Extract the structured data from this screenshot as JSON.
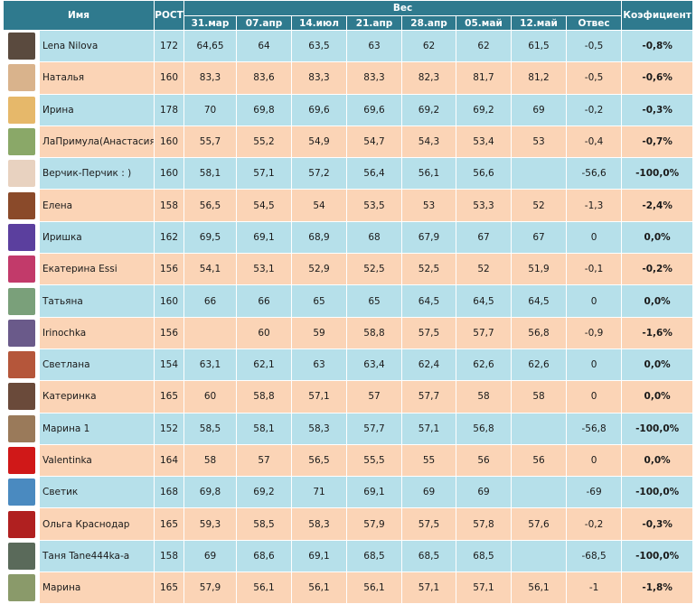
{
  "header": {
    "name": "Имя",
    "height": "РОСТ",
    "weight": "Вес",
    "dates": [
      "31.мар",
      "07.апр",
      "14.июл",
      "21.апр",
      "28.апр",
      "05.май",
      "12.май"
    ],
    "diff": "Отвес",
    "coef": "Коэфициент"
  },
  "rows": [
    {
      "name": "Lena Nilova",
      "height": "172",
      "w": [
        "64,65",
        "64",
        "63,5",
        "63",
        "62",
        "62",
        "61,5"
      ],
      "diff": "-0,5",
      "coef": "-0,8%",
      "avatar": "#5a4a3e"
    },
    {
      "name": "Наталья",
      "height": "160",
      "w": [
        "83,3",
        "83,6",
        "83,3",
        "83,3",
        "82,3",
        "81,7",
        "81,2"
      ],
      "diff": "-0,5",
      "coef": "-0,6%",
      "avatar": "#d9b38c"
    },
    {
      "name": "Ирина",
      "height": "178",
      "w": [
        "70",
        "69,8",
        "69,6",
        "69,6",
        "69,2",
        "69,2",
        "69"
      ],
      "diff": "-0,2",
      "coef": "-0,3%",
      "avatar": "#e6b86a"
    },
    {
      "name": "ЛаПримула(Анастасия)",
      "height": "160",
      "w": [
        "55,7",
        "55,2",
        "54,9",
        "54,7",
        "54,3",
        "53,4",
        "53"
      ],
      "diff": "-0,4",
      "coef": "-0,7%",
      "avatar": "#8aa868"
    },
    {
      "name": "Верчик-Перчик : )",
      "height": "160",
      "w": [
        "58,1",
        "57,1",
        "57,2",
        "56,4",
        "56,1",
        "56,6",
        ""
      ],
      "diff": "-56,6",
      "coef": "-100,0%",
      "avatar": "#e8d2c0"
    },
    {
      "name": "Елена",
      "height": "158",
      "w": [
        "56,5",
        "54,5",
        "54",
        "53,5",
        "53",
        "53,3",
        "52"
      ],
      "diff": "-1,3",
      "coef": "-2,4%",
      "avatar": "#8a4a2a"
    },
    {
      "name": "Иришка",
      "height": "162",
      "w": [
        "69,5",
        "69,1",
        "68,9",
        "68",
        "67,9",
        "67",
        "67"
      ],
      "diff": "0",
      "coef": "0,0%",
      "avatar": "#5b3f9e"
    },
    {
      "name": "Екатерина Essi",
      "height": "156",
      "w": [
        "54,1",
        "53,1",
        "52,9",
        "52,5",
        "52,5",
        "52",
        "51,9"
      ],
      "diff": "-0,1",
      "coef": "-0,2%",
      "avatar": "#c23a6a"
    },
    {
      "name": "Татьяна",
      "height": "160",
      "w": [
        "66",
        "66",
        "65",
        "65",
        "64,5",
        "64,5",
        "64,5"
      ],
      "diff": "0",
      "coef": "0,0%",
      "avatar": "#7aa07a"
    },
    {
      "name": "Irinochka",
      "height": "156",
      "w": [
        "",
        "60",
        "59",
        "58,8",
        "57,5",
        "57,7",
        "56,8"
      ],
      "diff": "-0,9",
      "coef": "-1,6%",
      "avatar": "#6a5a8a"
    },
    {
      "name": "Светлана",
      "height": "154",
      "w": [
        "63,1",
        "62,1",
        "63",
        "63,4",
        "62,4",
        "62,6",
        "62,6"
      ],
      "diff": "0",
      "coef": "0,0%",
      "avatar": "#b5563a"
    },
    {
      "name": "Катеринка",
      "height": "165",
      "w": [
        "60",
        "58,8",
        "57,1",
        "57",
        "57,7",
        "58",
        "58"
      ],
      "diff": "0",
      "coef": "0,0%",
      "avatar": "#6a4a3a"
    },
    {
      "name": "Марина 1",
      "height": "152",
      "w": [
        "58,5",
        "58,1",
        "58,3",
        "57,7",
        "57,1",
        "56,8",
        ""
      ],
      "diff": "-56,8",
      "coef": "-100,0%",
      "avatar": "#9a7a5a"
    },
    {
      "name": "Valentinka",
      "height": "164",
      "w": [
        "58",
        "57",
        "56,5",
        "55,5",
        "55",
        "56",
        "56"
      ],
      "diff": "0",
      "coef": "0,0%",
      "avatar": "#d01818"
    },
    {
      "name": "Светик",
      "height": "168",
      "w": [
        "69,8",
        "69,2",
        "71",
        "69,1",
        "69",
        "69",
        ""
      ],
      "diff": "-69",
      "coef": "-100,0%",
      "avatar": "#4a8ac0"
    },
    {
      "name": "Ольга Краснодар",
      "height": "165",
      "w": [
        "59,3",
        "58,5",
        "58,3",
        "57,9",
        "57,5",
        "57,8",
        "57,6"
      ],
      "diff": "-0,2",
      "coef": "-0,3%",
      "avatar": "#b02020"
    },
    {
      "name": "Таня Tane444ka-a",
      "height": "158",
      "w": [
        "69",
        "68,6",
        "69,1",
        "68,5",
        "68,5",
        "68,5",
        ""
      ],
      "diff": "-68,5",
      "coef": "-100,0%",
      "avatar": "#5a6a5a"
    },
    {
      "name": "Марина",
      "height": "165",
      "w": [
        "57,9",
        "56,1",
        "56,1",
        "56,1",
        "57,1",
        "57,1",
        "56,1"
      ],
      "diff": "-1",
      "coef": "-1,8%",
      "avatar": "#8a9a6a"
    }
  ]
}
